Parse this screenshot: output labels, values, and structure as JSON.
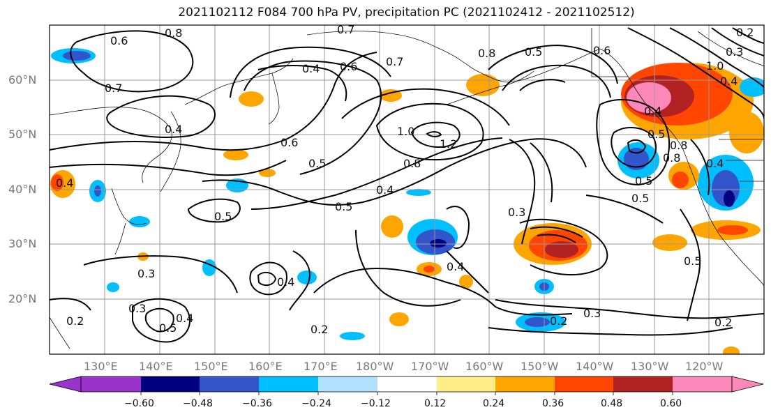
{
  "title": "2021102112 F084 700 hPa PV, precipitation PC (2021102412 - 2021102512)",
  "lat_labels": [
    "60°N",
    "50°N",
    "40°N",
    "30°N",
    "20°N"
  ],
  "lon_labels": [
    "130°E",
    "140°E",
    "150°E",
    "160°E",
    "170°E",
    "180°W",
    "170°W",
    "160°W",
    "150°W",
    "140°W",
    "130°W",
    "120°W"
  ],
  "contour_labels": [
    "0.6",
    "0.8",
    "0.7",
    "0.7",
    "0.6",
    "0.4",
    "0.7",
    "0.4",
    "0.5",
    "0.6",
    "1.0",
    "0.6",
    "0.5",
    "0.8",
    "1.2",
    "0.5",
    "0.4",
    "0.5",
    "0.3",
    "0.4",
    "0.3",
    "0.4",
    "0.3",
    "0.2",
    "0.2",
    "0.5",
    "0.4",
    "0.2",
    "0.8",
    "0.4",
    "0.5",
    "0.5",
    "0.8",
    "1.0",
    "0.4",
    "0.5",
    "0.2",
    "0.3",
    "0.4",
    "0.2",
    "0.3",
    "0.4",
    "0.5",
    "0.8"
  ],
  "colorbar": {
    "ticks": [
      "−0.60",
      "−0.48",
      "−0.36",
      "−0.24",
      "−0.12",
      "0.12",
      "0.24",
      "0.36",
      "0.48",
      "0.60"
    ],
    "colors": [
      "#9933cc",
      "#000080",
      "#3355cc",
      "#00bfff",
      "#b0e2ff",
      "#ffffff",
      "#ffee88",
      "#ffa500",
      "#ff4500",
      "#b22222",
      "#ff88bb"
    ]
  }
}
